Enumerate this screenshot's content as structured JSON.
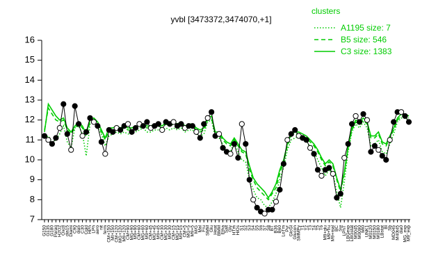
{
  "chart_data": {
    "type": "line",
    "title": "yvbl [3473372,3474070,+1]",
    "xlabel": "",
    "ylabel": "",
    "ylim": [
      7,
      16
    ],
    "yticks": [
      7,
      8,
      9,
      10,
      11,
      12,
      13,
      14,
      15,
      16
    ],
    "xtick_labels": [
      "G150",
      "G135",
      "G180",
      "Paraq",
      "H2O2",
      "Oxctl",
      "dia15",
      "Diami",
      "C90",
      "dia5",
      "C30",
      "Cold",
      "HPh",
      "LPh",
      "aero",
      "nit",
      "ferm",
      "CM+150",
      "Mt+150",
      "CM+120",
      "MG+120",
      "M9+120",
      "CM+90",
      "MG+90",
      "M9+90",
      "CM+60",
      "MG+60",
      "M9+60",
      "CM+45",
      "MG+45",
      "M9+45",
      "CM+30",
      "MG+30",
      "M9+30",
      "CM+15",
      "MG+15",
      "M9+15",
      "CM+5",
      "MG+5",
      "M9+5",
      "M/G",
      "Mal",
      "Fru",
      "SMM",
      "Glu",
      "Heat",
      "BMM",
      "Etha",
      "Salt",
      "Gly",
      "HTm",
      "HiOs",
      "S1",
      "S2",
      "S3",
      "S4",
      "S5",
      "S6",
      "S7",
      "S8",
      "BT",
      "B36",
      "B60",
      "LoTm",
      "Pyr",
      "GlcGl",
      "Glucon",
      "SMMPy",
      "T1",
      "T2",
      "T3",
      "T4",
      "T5",
      "T6",
      "M9+glu",
      "M9+fru",
      "M9+mal",
      "BC",
      "Sw",
      "LPhT",
      "LBGexp",
      "LBGstat",
      "M0045",
      "M0090",
      "Mt0",
      "UNK1",
      "M0120",
      "M0150",
      "M0180",
      "LBstat",
      "Bl",
      "Sb",
      "MD045",
      "M40t45",
      "dia0",
      "MG_exp",
      "M9_exp"
    ],
    "series": [
      {
        "name": "A1195 size: 7",
        "style": "dotted",
        "color": "#00cc00",
        "values": [
          11.1,
          11.2,
          10.9,
          11.0,
          11.3,
          11.7,
          10.9,
          10.6,
          11.6,
          11.7,
          11.3,
          10.2,
          11.8,
          12.0,
          11.6,
          11.3,
          10.7,
          11.2,
          11.3,
          11.4,
          11.3,
          11.4,
          11.3,
          11.3,
          11.4,
          11.5,
          11.6,
          11.4,
          11.4,
          11.5,
          11.5,
          11.4,
          11.6,
          11.5,
          11.6,
          11.5,
          11.6,
          11.4,
          11.5,
          11.5,
          11.3,
          11.2,
          11.3,
          11.9,
          12.0,
          11.1,
          11.1,
          10.8,
          10.5,
          10.4,
          10.9,
          10.4,
          10.0,
          9.9,
          9.0,
          8.5,
          8.1,
          8.0,
          7.7,
          7.6,
          7.9,
          8.3,
          9.0,
          9.6,
          10.5,
          11.0,
          11.1,
          11.2,
          11.1,
          11.0,
          10.6,
          10.4,
          10.0,
          9.6,
          9.2,
          9.5,
          9.3,
          8.4,
          7.6,
          8.9,
          10.4,
          11.4,
          11.8,
          11.6,
          11.9,
          11.6,
          10.7,
          10.8,
          11.0,
          10.4,
          10.3,
          10.8,
          11.3,
          11.9,
          12.1,
          12.1,
          12.0
        ]
      },
      {
        "name": "B5 size: 546",
        "style": "dashed",
        "color": "#00cc00",
        "values": [
          11.5,
          12.6,
          12.3,
          12.0,
          11.9,
          12.0,
          11.5,
          11.3,
          11.6,
          11.8,
          11.6,
          11.2,
          11.9,
          12.0,
          11.8,
          11.4,
          11.0,
          11.5,
          11.6,
          11.6,
          11.5,
          11.6,
          11.5,
          11.5,
          11.6,
          11.6,
          11.7,
          11.6,
          11.6,
          11.7,
          11.7,
          11.6,
          11.8,
          11.7,
          11.8,
          11.7,
          11.8,
          11.6,
          11.7,
          11.7,
          11.5,
          11.4,
          11.5,
          12.0,
          12.1,
          11.3,
          11.3,
          11.0,
          10.8,
          10.7,
          11.0,
          10.7,
          10.4,
          10.3,
          9.5,
          9.0,
          8.6,
          8.4,
          8.2,
          8.0,
          8.3,
          8.6,
          9.3,
          9.9,
          10.7,
          11.2,
          11.3,
          11.3,
          11.2,
          11.1,
          10.9,
          10.7,
          10.4,
          10.0,
          9.7,
          9.9,
          9.7,
          9.0,
          8.4,
          9.3,
          10.6,
          11.5,
          11.9,
          11.8,
          12.0,
          11.8,
          11.1,
          11.1,
          11.3,
          10.8,
          10.7,
          11.1,
          11.5,
          12.0,
          12.2,
          12.2,
          12.1
        ]
      },
      {
        "name": "C3 size: 1383",
        "style": "solid",
        "color": "#00cc00",
        "values": [
          11.4,
          12.8,
          12.5,
          12.2,
          12.0,
          12.1,
          11.6,
          11.4,
          11.7,
          11.9,
          11.7,
          11.3,
          12.0,
          12.1,
          11.9,
          11.5,
          11.1,
          11.6,
          11.6,
          11.7,
          11.6,
          11.7,
          11.6,
          11.6,
          11.7,
          11.7,
          11.8,
          11.7,
          11.7,
          11.8,
          11.8,
          11.7,
          11.9,
          11.8,
          11.9,
          11.8,
          11.9,
          11.7,
          11.8,
          11.8,
          11.6,
          11.5,
          11.6,
          12.1,
          12.2,
          11.4,
          11.4,
          11.1,
          10.9,
          10.8,
          11.1,
          10.8,
          10.5,
          10.4,
          9.7,
          9.1,
          8.8,
          8.6,
          8.4,
          8.1,
          8.4,
          8.8,
          9.5,
          10.0,
          10.8,
          11.3,
          11.4,
          11.4,
          11.3,
          11.2,
          11.0,
          10.8,
          10.5,
          10.1,
          9.8,
          10.0,
          9.8,
          9.1,
          8.5,
          9.4,
          10.7,
          11.6,
          12.0,
          11.9,
          12.1,
          11.9,
          11.2,
          11.2,
          11.4,
          10.9,
          10.8,
          11.2,
          11.6,
          12.1,
          12.3,
          12.3,
          12.2
        ]
      },
      {
        "name": "yvbl",
        "style": "points",
        "color": "#000000",
        "values": [
          11.2,
          11.0,
          10.8,
          11.1,
          11.6,
          12.8,
          11.3,
          10.5,
          12.7,
          11.8,
          11.2,
          11.4,
          12.1,
          11.9,
          11.7,
          10.9,
          10.3,
          11.5,
          11.4,
          11.6,
          11.5,
          11.7,
          11.8,
          11.4,
          11.6,
          11.8,
          11.7,
          11.9,
          11.6,
          11.7,
          11.8,
          11.5,
          11.9,
          11.8,
          11.9,
          11.7,
          11.8,
          11.6,
          11.7,
          11.7,
          11.4,
          11.1,
          11.8,
          12.1,
          12.4,
          11.2,
          11.3,
          10.6,
          10.4,
          10.3,
          10.8,
          10.1,
          11.8,
          10.8,
          9.0,
          8.0,
          7.6,
          7.4,
          7.3,
          7.5,
          7.5,
          7.9,
          8.5,
          9.8,
          11.0,
          11.3,
          11.5,
          11.2,
          11.1,
          11.0,
          10.6,
          10.3,
          9.5,
          9.2,
          9.5,
          9.6,
          9.3,
          8.1,
          8.3,
          10.1,
          10.8,
          11.8,
          12.2,
          11.9,
          12.3,
          12.0,
          10.4,
          10.7,
          10.5,
          10.2,
          10.0,
          11.0,
          11.9,
          12.4,
          12.4,
          12.2,
          11.9
        ]
      }
    ],
    "legend": {
      "title": "clusters",
      "placement": "top-right"
    }
  }
}
